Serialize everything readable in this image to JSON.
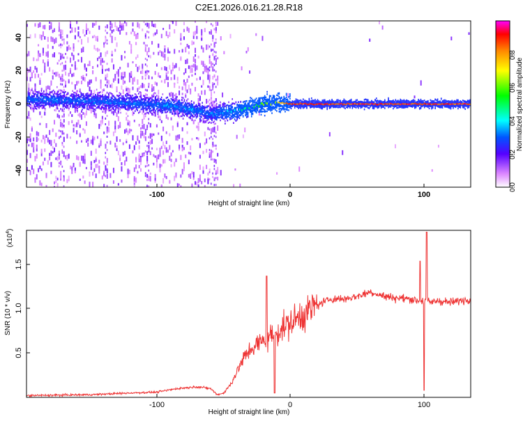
{
  "chart_data": [
    {
      "type": "heatmap",
      "title": "C2E1.2026.016.21.28.R18",
      "xlabel": "Height of straight line (km)",
      "ylabel": "Frequency (Hz)",
      "xlim": [
        -198,
        135
      ],
      "ylim": [
        -50,
        50
      ],
      "x_ticks": [
        -100,
        0,
        100
      ],
      "x_tick_labels": [
        "-100",
        "0",
        "100"
      ],
      "y_ticks": [
        -40,
        -20,
        0,
        20,
        40
      ],
      "y_tick_labels": [
        "-40",
        "-20",
        "0",
        "20",
        "40"
      ],
      "colorbar": {
        "label": "Normalized spectral amplitude",
        "range": [
          0,
          1
        ],
        "ticks": [
          0.0,
          0.2,
          0.4,
          0.6,
          0.8
        ],
        "tick_labels": [
          "0.0",
          "0.2",
          "0.4",
          "0.6",
          "0.8"
        ]
      },
      "ridge": {
        "x": [
          -198,
          -160,
          -130,
          -110,
          -90,
          -75,
          -60,
          -50,
          -40,
          -30,
          -20,
          -10,
          0,
          20,
          60,
          100,
          135
        ],
        "frequency": [
          3,
          2,
          1,
          0,
          -1,
          -3,
          -6,
          -5,
          -4,
          -2,
          0,
          1,
          0,
          0,
          0,
          0,
          0
        ],
        "amplitude": [
          0.35,
          0.35,
          0.35,
          0.35,
          0.38,
          0.38,
          0.35,
          0.4,
          0.45,
          0.55,
          0.65,
          0.75,
          0.95,
          0.95,
          0.95,
          0.95,
          0.95
        ]
      }
    },
    {
      "type": "line",
      "xlabel": "Height of straight line (km)",
      "ylabel": "SNR (10 * v/v)",
      "scale_label": "(x10",
      "scale_exponent": "4",
      "scale_suffix": ")",
      "xlim": [
        -198,
        135
      ],
      "ylim": [
        0,
        1.9
      ],
      "x_ticks": [
        -100,
        0,
        100
      ],
      "x_tick_labels": [
        "-100",
        "0",
        "100"
      ],
      "y_ticks": [
        0.5,
        1.0,
        1.5
      ],
      "y_tick_labels": [
        "0.5",
        "1.0",
        "1.5"
      ],
      "color": "#ee3333",
      "series": [
        {
          "name": "SNR",
          "x": [
            -198,
            -150,
            -120,
            -100,
            -85,
            -70,
            -60,
            -55,
            -50,
            -45,
            -40,
            -35,
            -30,
            -25,
            -20,
            -15,
            -10,
            -5,
            0,
            10,
            20,
            30,
            40,
            50,
            60,
            70,
            80,
            90,
            95,
            100,
            105,
            110,
            120,
            135
          ],
          "y": [
            0.02,
            0.03,
            0.05,
            0.06,
            0.1,
            0.12,
            0.1,
            0.03,
            0.05,
            0.15,
            0.3,
            0.45,
            0.55,
            0.6,
            0.65,
            0.7,
            0.75,
            0.8,
            0.85,
            0.95,
            1.05,
            1.12,
            1.12,
            1.15,
            1.2,
            1.15,
            1.13,
            1.12,
            1.1,
            1.1,
            1.08,
            1.1,
            1.08,
            1.12
          ]
        }
      ],
      "spikes": [
        {
          "x": -18,
          "y": 1.38
        },
        {
          "x": -12,
          "y": 0.05
        },
        {
          "x": 97,
          "y": 1.55
        },
        {
          "x": 100,
          "y": 0.08
        },
        {
          "x": 102,
          "y": 1.88
        }
      ]
    }
  ]
}
